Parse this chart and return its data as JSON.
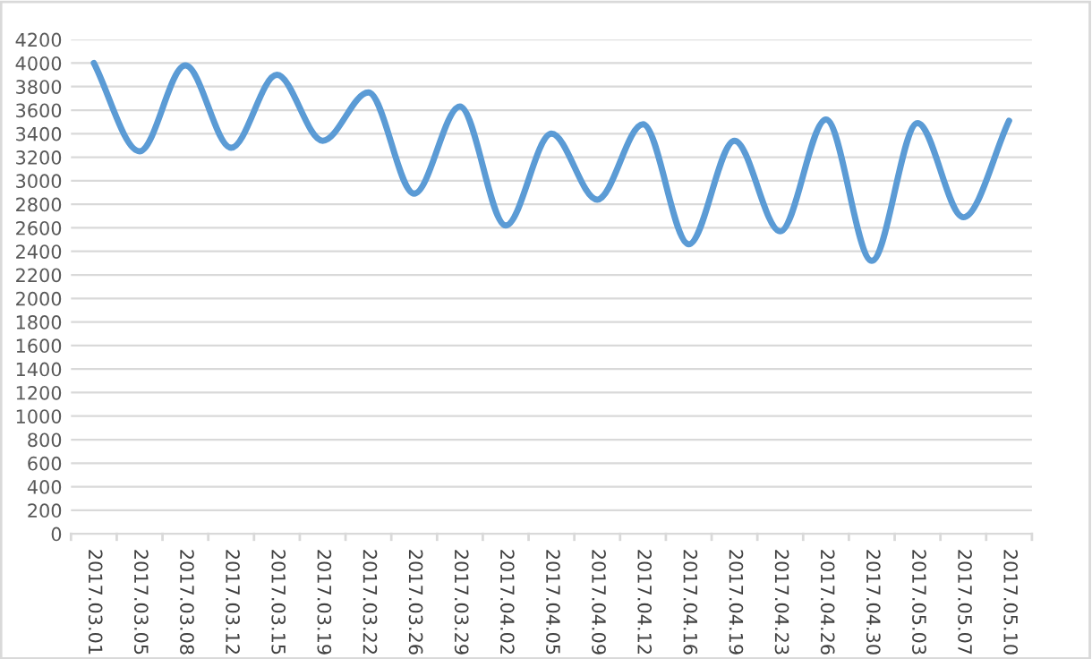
{
  "chart_data": {
    "type": "line",
    "categories": [
      "2017.03.01",
      "2017.03.05",
      "2017.03.08",
      "2017.03.12",
      "2017.03.15",
      "2017.03.19",
      "2017.03.22",
      "2017.03.26",
      "2017.03.29",
      "2017.04.02",
      "2017.04.05",
      "2017.04.09",
      "2017.04.12",
      "2017.04.16",
      "2017.04.19",
      "2017.04.23",
      "2017.04.26",
      "2017.04.30",
      "2017.05.03",
      "2017.05.07",
      "2017.05.10"
    ],
    "series": [
      {
        "color": "#5b9bd5",
        "values": [
          4000,
          3250,
          3980,
          3280,
          3900,
          3340,
          3750,
          2890,
          3630,
          2620,
          3400,
          2840,
          3480,
          2460,
          3340,
          2570,
          3520,
          2320,
          3490,
          2690,
          3510
        ]
      }
    ],
    "ylim": [
      0,
      4200
    ],
    "yticks": [
      0,
      200,
      400,
      600,
      800,
      1000,
      1200,
      1400,
      1600,
      1800,
      2000,
      2200,
      2400,
      2600,
      2800,
      3000,
      3200,
      3400,
      3600,
      3800,
      4000,
      4200
    ],
    "grid": "y",
    "legend": false,
    "marker": "none",
    "line_style": "solid"
  }
}
